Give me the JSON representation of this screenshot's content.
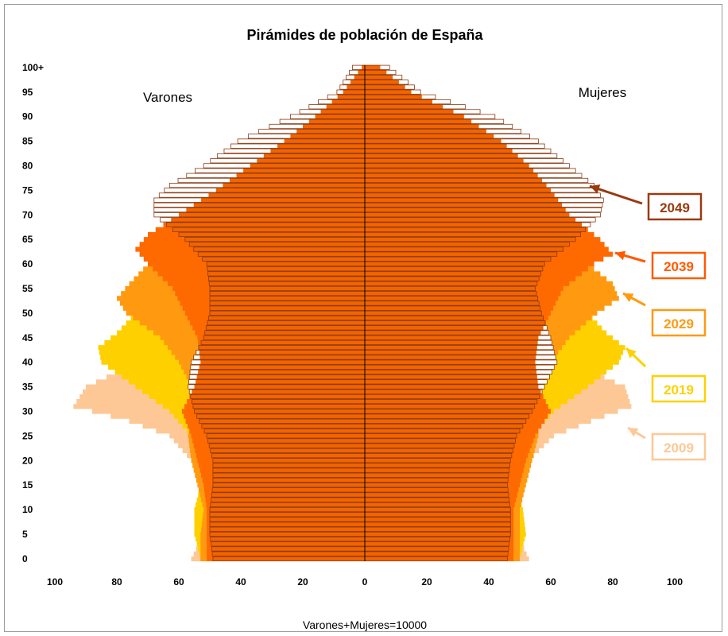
{
  "chart_data": {
    "type": "bar",
    "title": "Pirámides de población de España",
    "xlabel": "Varones+Mujeres=10000",
    "left_label": "Varones",
    "right_label": "Mujeres",
    "x_ticks": [
      "100",
      "80",
      "60",
      "40",
      "20",
      "0",
      "20",
      "40",
      "60",
      "80",
      "100"
    ],
    "y_ticks": [
      "0",
      "5",
      "10",
      "15",
      "20",
      "25",
      "30",
      "35",
      "40",
      "45",
      "50",
      "55",
      "60",
      "65",
      "70",
      "75",
      "80",
      "85",
      "90",
      "95",
      "100+"
    ],
    "xlim": [
      -100,
      100
    ],
    "ylim": [
      0,
      100
    ],
    "grid": false,
    "colors": {
      "2009": "#fdc896",
      "2019": "#ffd000",
      "2029": "#ff9a10",
      "2039": "#ff6a00",
      "2049_fill": "#f26400",
      "2049_stroke": "#8b3a12",
      "arrow_2049": "#9a3a10",
      "axis": "#000000"
    },
    "series": [
      {
        "name": "2009",
        "men": [
          [
            0,
            56
          ],
          [
            5,
            52
          ],
          [
            10,
            50
          ],
          [
            15,
            51
          ],
          [
            20,
            56
          ],
          [
            25,
            63
          ],
          [
            28,
            76
          ],
          [
            31,
            94
          ],
          [
            35,
            90
          ],
          [
            38,
            80
          ],
          [
            42,
            76
          ],
          [
            46,
            72
          ],
          [
            50,
            68
          ],
          [
            55,
            64
          ],
          [
            60,
            58
          ],
          [
            65,
            48
          ],
          [
            70,
            40
          ],
          [
            75,
            33
          ],
          [
            80,
            27
          ],
          [
            85,
            19
          ],
          [
            90,
            11
          ],
          [
            95,
            4
          ],
          [
            100,
            1
          ]
        ],
        "women": [
          [
            0,
            53
          ],
          [
            5,
            49
          ],
          [
            10,
            47
          ],
          [
            15,
            48
          ],
          [
            20,
            53
          ],
          [
            25,
            61
          ],
          [
            28,
            73
          ],
          [
            31,
            86
          ],
          [
            35,
            84
          ],
          [
            38,
            74
          ],
          [
            42,
            70
          ],
          [
            46,
            66
          ],
          [
            50,
            63
          ],
          [
            55,
            60
          ],
          [
            60,
            57
          ],
          [
            65,
            52
          ],
          [
            70,
            50
          ],
          [
            75,
            48
          ],
          [
            80,
            44
          ],
          [
            85,
            35
          ],
          [
            90,
            24
          ],
          [
            95,
            10
          ],
          [
            100,
            3
          ]
        ]
      },
      {
        "name": "2019",
        "men": [
          [
            0,
            53
          ],
          [
            5,
            55
          ],
          [
            10,
            55
          ],
          [
            15,
            53
          ],
          [
            20,
            52
          ],
          [
            25,
            56
          ],
          [
            30,
            63
          ],
          [
            35,
            74
          ],
          [
            40,
            85
          ],
          [
            43,
            86
          ],
          [
            46,
            80
          ],
          [
            50,
            74
          ],
          [
            55,
            68
          ],
          [
            60,
            60
          ],
          [
            65,
            52
          ],
          [
            70,
            45
          ],
          [
            75,
            38
          ],
          [
            80,
            30
          ],
          [
            85,
            21
          ],
          [
            90,
            12
          ],
          [
            95,
            5
          ],
          [
            100,
            1
          ]
        ],
        "women": [
          [
            0,
            50
          ],
          [
            5,
            52
          ],
          [
            10,
            51
          ],
          [
            15,
            49
          ],
          [
            20,
            50
          ],
          [
            25,
            54
          ],
          [
            30,
            61
          ],
          [
            35,
            72
          ],
          [
            40,
            82
          ],
          [
            43,
            84
          ],
          [
            46,
            78
          ],
          [
            50,
            72
          ],
          [
            55,
            66
          ],
          [
            60,
            61
          ],
          [
            65,
            57
          ],
          [
            70,
            55
          ],
          [
            75,
            52
          ],
          [
            80,
            47
          ],
          [
            85,
            38
          ],
          [
            90,
            27
          ],
          [
            95,
            12
          ],
          [
            100,
            4
          ]
        ]
      },
      {
        "name": "2029",
        "men": [
          [
            0,
            53
          ],
          [
            5,
            53
          ],
          [
            10,
            52
          ],
          [
            15,
            54
          ],
          [
            20,
            56
          ],
          [
            25,
            57
          ],
          [
            30,
            55
          ],
          [
            35,
            56
          ],
          [
            40,
            60
          ],
          [
            45,
            66
          ],
          [
            50,
            77
          ],
          [
            53,
            80
          ],
          [
            56,
            76
          ],
          [
            60,
            70
          ],
          [
            65,
            60
          ],
          [
            70,
            50
          ],
          [
            75,
            42
          ],
          [
            80,
            33
          ],
          [
            85,
            24
          ],
          [
            90,
            14
          ],
          [
            95,
            6
          ],
          [
            100,
            1
          ]
        ],
        "women": [
          [
            0,
            50
          ],
          [
            5,
            50
          ],
          [
            10,
            50
          ],
          [
            15,
            52
          ],
          [
            20,
            54
          ],
          [
            25,
            56
          ],
          [
            30,
            55
          ],
          [
            35,
            56
          ],
          [
            40,
            60
          ],
          [
            45,
            66
          ],
          [
            50,
            75
          ],
          [
            53,
            82
          ],
          [
            56,
            80
          ],
          [
            60,
            72
          ],
          [
            65,
            64
          ],
          [
            70,
            60
          ],
          [
            75,
            57
          ],
          [
            80,
            51
          ],
          [
            85,
            42
          ],
          [
            90,
            30
          ],
          [
            95,
            13
          ],
          [
            100,
            5
          ]
        ]
      },
      {
        "name": "2039",
        "men": [
          [
            0,
            51
          ],
          [
            5,
            51
          ],
          [
            10,
            51
          ],
          [
            15,
            52
          ],
          [
            20,
            54
          ],
          [
            25,
            56
          ],
          [
            30,
            59
          ],
          [
            35,
            55
          ],
          [
            40,
            53
          ],
          [
            45,
            54
          ],
          [
            50,
            58
          ],
          [
            55,
            62
          ],
          [
            60,
            70
          ],
          [
            63,
            74
          ],
          [
            66,
            70
          ],
          [
            70,
            60
          ],
          [
            75,
            48
          ],
          [
            80,
            37
          ],
          [
            85,
            26
          ],
          [
            90,
            16
          ],
          [
            95,
            7
          ],
          [
            100,
            1
          ]
        ],
        "women": [
          [
            0,
            48
          ],
          [
            5,
            48
          ],
          [
            10,
            48
          ],
          [
            15,
            50
          ],
          [
            20,
            52
          ],
          [
            25,
            55
          ],
          [
            30,
            60
          ],
          [
            35,
            56
          ],
          [
            40,
            55
          ],
          [
            45,
            56
          ],
          [
            50,
            60
          ],
          [
            55,
            64
          ],
          [
            60,
            74
          ],
          [
            62,
            80
          ],
          [
            65,
            76
          ],
          [
            70,
            66
          ],
          [
            75,
            60
          ],
          [
            80,
            53
          ],
          [
            85,
            44
          ],
          [
            90,
            32
          ],
          [
            95,
            15
          ],
          [
            100,
            5
          ]
        ]
      },
      {
        "name": "2049",
        "men": [
          [
            0,
            49
          ],
          [
            5,
            50
          ],
          [
            10,
            50
          ],
          [
            15,
            49
          ],
          [
            20,
            49
          ],
          [
            25,
            51
          ],
          [
            30,
            55
          ],
          [
            35,
            57
          ],
          [
            40,
            56
          ],
          [
            45,
            52
          ],
          [
            50,
            50
          ],
          [
            55,
            50
          ],
          [
            60,
            51
          ],
          [
            65,
            58
          ],
          [
            70,
            68
          ],
          [
            73,
            68
          ],
          [
            76,
            63
          ],
          [
            80,
            52
          ],
          [
            85,
            41
          ],
          [
            90,
            24
          ],
          [
            95,
            9
          ],
          [
            100,
            4
          ]
        ],
        "women": [
          [
            0,
            46
          ],
          [
            5,
            47
          ],
          [
            10,
            47
          ],
          [
            15,
            46
          ],
          [
            20,
            47
          ],
          [
            25,
            49
          ],
          [
            30,
            54
          ],
          [
            35,
            58
          ],
          [
            40,
            62
          ],
          [
            45,
            60
          ],
          [
            50,
            57
          ],
          [
            55,
            55
          ],
          [
            60,
            58
          ],
          [
            65,
            68
          ],
          [
            70,
            76
          ],
          [
            73,
            77
          ],
          [
            76,
            74
          ],
          [
            80,
            66
          ],
          [
            85,
            56
          ],
          [
            90,
            42
          ],
          [
            95,
            18
          ],
          [
            100,
            8
          ]
        ]
      }
    ],
    "legend": [
      {
        "label": "2049",
        "color": "#9a3a10"
      },
      {
        "label": "2039",
        "color": "#ff5a00"
      },
      {
        "label": "2029",
        "color": "#ff9a10"
      },
      {
        "label": "2019",
        "color": "#ffd000"
      },
      {
        "label": "2009",
        "color": "#fdc896"
      }
    ],
    "legend_placement": "right"
  }
}
